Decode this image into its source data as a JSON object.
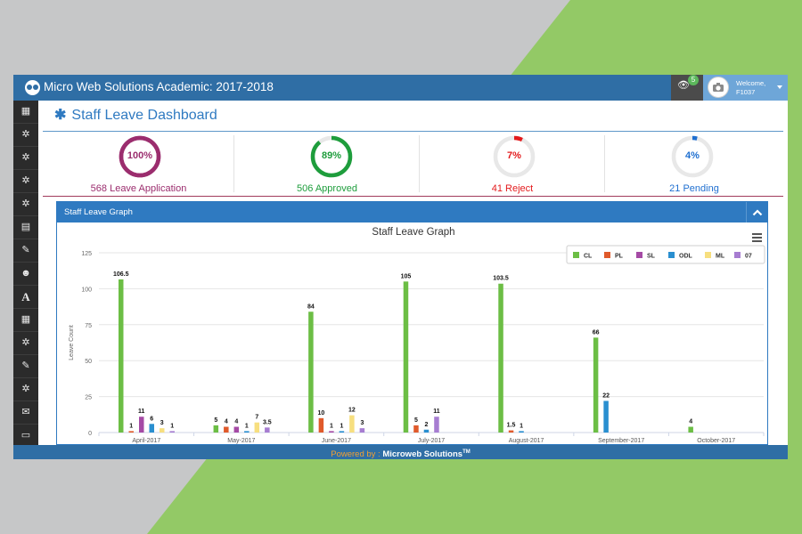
{
  "colors": {
    "topbar": "#2f6ea5",
    "accent": "#2f7ac1",
    "green_bg": "#93c966",
    "CL": "#6cbe45",
    "PL": "#e05a2b",
    "SL": "#a54aa5",
    "ODL": "#2a8fd0",
    "ML": "#f7df7f",
    "O7": "#a77dd1"
  },
  "header": {
    "app_title": "Micro Web Solutions Academic: 2017-2018",
    "notification_icon": "eye-icon",
    "notification_count": "5",
    "user": {
      "welcome": "Welcome,",
      "id": "F1037"
    }
  },
  "sidebar": {
    "items": [
      {
        "icon": "table-icon",
        "glyph": "▦"
      },
      {
        "icon": "cogs-icon",
        "glyph": "✲"
      },
      {
        "icon": "cogs-icon",
        "glyph": "✲"
      },
      {
        "icon": "cogs-icon",
        "glyph": "✲"
      },
      {
        "icon": "cogs-icon",
        "glyph": "✲"
      },
      {
        "icon": "calendar-icon",
        "glyph": "▤"
      },
      {
        "icon": "edit-icon",
        "glyph": "✎"
      },
      {
        "icon": "users-icon",
        "glyph": "☻"
      },
      {
        "icon": "font-icon",
        "glyph": "A"
      },
      {
        "icon": "table-icon",
        "glyph": "▦"
      },
      {
        "icon": "cogs-icon",
        "glyph": "✲"
      },
      {
        "icon": "edit-icon",
        "glyph": "✎"
      },
      {
        "icon": "cogs-icon",
        "glyph": "✲"
      },
      {
        "icon": "envelope-icon",
        "glyph": "✉"
      },
      {
        "icon": "credit-card-icon",
        "glyph": "▭"
      }
    ]
  },
  "page": {
    "title": "Staff Leave Dashboard"
  },
  "stats": [
    {
      "pct": "100%",
      "fraction": 1.0,
      "label": "568 Leave Application",
      "color": "#9b2d6e",
      "track": "#9b2d6e"
    },
    {
      "pct": "89%",
      "fraction": 0.89,
      "label": "506 Approved",
      "color": "#1e9d3c",
      "track": "#e8e8e8"
    },
    {
      "pct": "7%",
      "fraction": 0.07,
      "label": "41 Reject",
      "color": "#e31a1c",
      "track": "#e8e8e8"
    },
    {
      "pct": "4%",
      "fraction": 0.04,
      "label": "21 Pending",
      "color": "#1f6fd0",
      "track": "#e8e8e8"
    }
  ],
  "panel": {
    "title": "Staff Leave Graph"
  },
  "chart_data": {
    "type": "bar",
    "title": "Staff Leave Graph",
    "ylabel": "Leave Count",
    "xlabel": "",
    "ylim": [
      0,
      125
    ],
    "yticks": [
      0,
      25,
      50,
      75,
      100,
      125
    ],
    "categories": [
      "April-2017",
      "May-2017",
      "June-2017",
      "July-2017",
      "August-2017",
      "September-2017",
      "October-2017"
    ],
    "legend_position": "top-right",
    "series": [
      {
        "name": "CL",
        "values": [
          106.5,
          5,
          84,
          105,
          103.5,
          66,
          4
        ]
      },
      {
        "name": "PL",
        "values": [
          1,
          4,
          10,
          5,
          1.5,
          null,
          null
        ]
      },
      {
        "name": "SL",
        "values": [
          11,
          4,
          1,
          null,
          null,
          null,
          null
        ]
      },
      {
        "name": "ODL",
        "values": [
          6,
          1,
          1,
          2,
          1,
          22,
          null
        ]
      },
      {
        "name": "ML",
        "values": [
          3,
          7,
          12,
          null,
          null,
          null,
          null
        ]
      },
      {
        "name": "07",
        "values": [
          1,
          3.5,
          3,
          11,
          null,
          null,
          null
        ]
      }
    ]
  },
  "footer": {
    "powered_by": "Powered by :",
    "brand": "Microweb Solutions",
    "tm": "TM"
  }
}
